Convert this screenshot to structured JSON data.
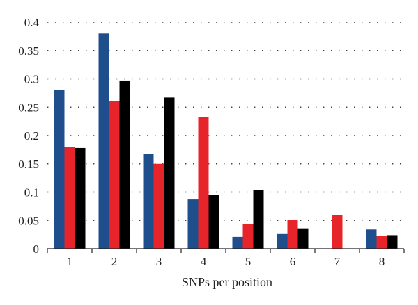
{
  "chart_data": {
    "type": "bar",
    "title": "",
    "xlabel": "SNPs per position",
    "ylabel": "",
    "categories": [
      "1",
      "2",
      "3",
      "4",
      "5",
      "6",
      "7",
      "8"
    ],
    "ylim": [
      0,
      0.4
    ],
    "yticks": [
      "0",
      "0.05",
      "0.1",
      "0.15",
      "0.2",
      "0.25",
      "0.3",
      "0.35",
      "0.4"
    ],
    "grid": true,
    "legend": "none",
    "series": [
      {
        "color": "#1f4e8c",
        "values": [
          0.281,
          0.38,
          0.168,
          0.087,
          0.021,
          0.026,
          0,
          0.034
        ]
      },
      {
        "color": "#e8242b",
        "values": [
          0.18,
          0.261,
          0.15,
          0.233,
          0.043,
          0.051,
          0.06,
          0.023
        ]
      },
      {
        "color": "#000000",
        "values": [
          0.178,
          0.297,
          0.267,
          0.095,
          0.104,
          0.036,
          0,
          0.024
        ]
      }
    ]
  }
}
